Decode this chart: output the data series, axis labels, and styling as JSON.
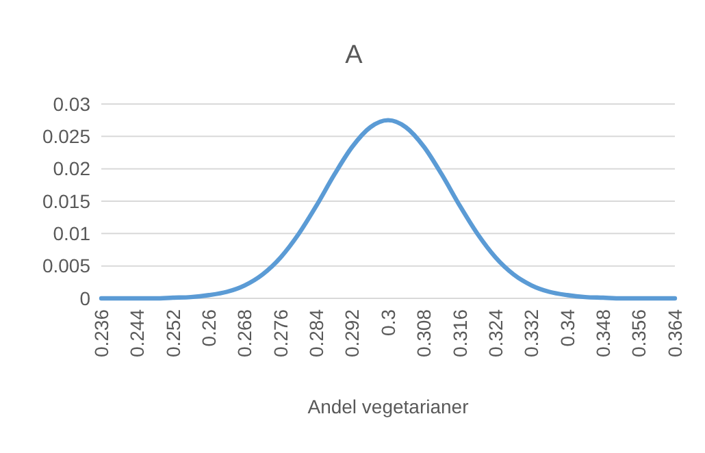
{
  "chart_data": {
    "type": "line",
    "title": "A",
    "xlabel": "Andel vegetarianer",
    "categories": [
      "0.236",
      null,
      "0.244",
      null,
      "0.252",
      null,
      "0.26",
      null,
      "0.268",
      null,
      "0.276",
      null,
      "0.284",
      null,
      "0.292",
      null,
      "0.3",
      null,
      "0.308",
      null,
      "0.316",
      null,
      "0.324",
      null,
      "0.332",
      null,
      "0.34",
      null,
      "0.348",
      null,
      "0.356",
      null,
      "0.364"
    ],
    "series": [
      {
        "color": "#5b9bd5",
        "values": [
          0,
          0,
          0,
          0,
          0.0001,
          0.0002,
          0.0005,
          0.001,
          0.002,
          0.0037,
          0.0063,
          0.0099,
          0.0143,
          0.0191,
          0.0234,
          0.0264,
          0.0275,
          0.0264,
          0.0234,
          0.0191,
          0.0143,
          0.0099,
          0.0063,
          0.0037,
          0.002,
          0.001,
          0.0005,
          0.0002,
          0.0001,
          0,
          0,
          0,
          0
        ]
      }
    ],
    "ylim": [
      0,
      0.03
    ],
    "yticks": [
      0,
      0.005,
      0.01,
      0.015,
      0.02,
      0.025,
      0.03
    ],
    "grid": "y",
    "marker": "none",
    "line_style": "solid"
  }
}
